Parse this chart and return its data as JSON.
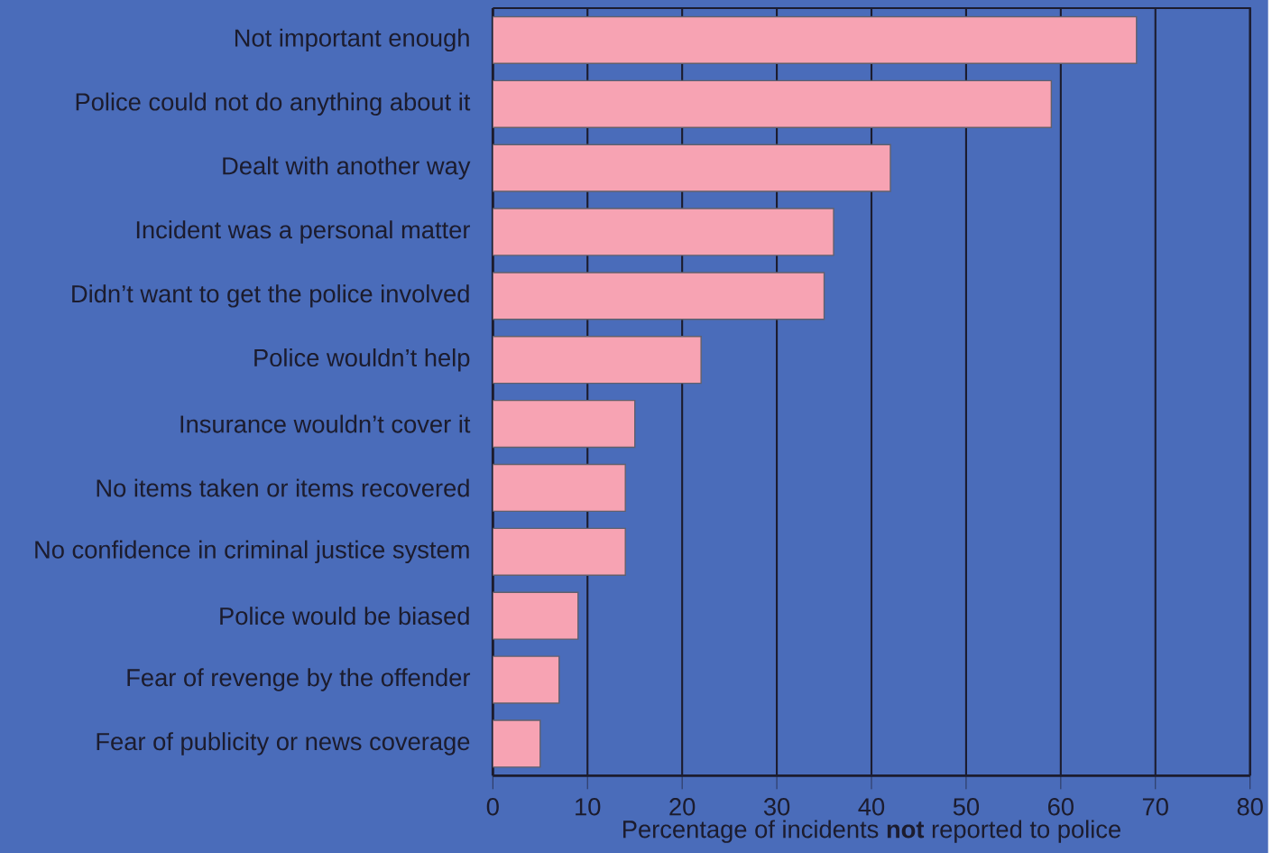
{
  "chart_data": {
    "type": "bar",
    "orientation": "horizontal",
    "xlabel": "Percentage of incidents **not** reported to police",
    "categories": [
      "Not important enough",
      "Police could not do anything about it",
      "Dealt with another way",
      "Incident was a personal matter",
      "Didn’t want to get the police involved",
      "Police wouldn’t help",
      "Insurance wouldn’t cover it",
      "No items taken or items recovered",
      "No confidence in criminal justice system",
      "Police would be biased",
      "Fear of revenge by the offender",
      "Fear of publicity or news coverage"
    ],
    "values": [
      68,
      59,
      42,
      36,
      35,
      22,
      15,
      14,
      14,
      9,
      7,
      5
    ],
    "color": "#f7a3b3",
    "xlim": [
      0,
      80
    ],
    "xticks": [
      0,
      10,
      20,
      30,
      40,
      50,
      60,
      70,
      80
    ],
    "grid": "x"
  }
}
